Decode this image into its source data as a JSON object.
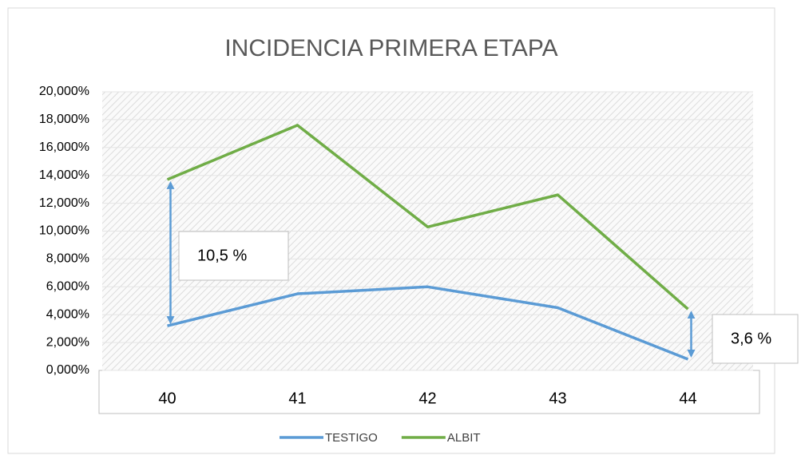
{
  "chart_data": {
    "type": "line",
    "title": "INCIDENCIA PRIMERA ETAPA",
    "categories": [
      "40",
      "41",
      "42",
      "43",
      "44"
    ],
    "series": [
      {
        "name": "TESTIGO",
        "color": "#5b9bd5",
        "values": [
          3.2,
          5.5,
          6.0,
          4.5,
          0.8
        ]
      },
      {
        "name": "ALBIT",
        "color": "#70ad47",
        "values": [
          13.7,
          17.6,
          10.3,
          12.6,
          4.4
        ]
      }
    ],
    "ylim": [
      0,
      20
    ],
    "yticks": [
      {
        "value": 0,
        "label": "0,000%"
      },
      {
        "value": 2,
        "label": "2,000%"
      },
      {
        "value": 4,
        "label": "4,000%"
      },
      {
        "value": 6,
        "label": "6,000%"
      },
      {
        "value": 8,
        "label": "8,000%"
      },
      {
        "value": 10,
        "label": "10,000%"
      },
      {
        "value": 12,
        "label": "12,000%"
      },
      {
        "value": 14,
        "label": "14,000%"
      },
      {
        "value": 16,
        "label": "16,000%"
      },
      {
        "value": 18,
        "label": "18,000%"
      },
      {
        "value": 20,
        "label": "20,000%"
      }
    ],
    "grid": true,
    "legend": "bottom",
    "annotations": [
      "10,5 %",
      "3,6 %"
    ]
  }
}
